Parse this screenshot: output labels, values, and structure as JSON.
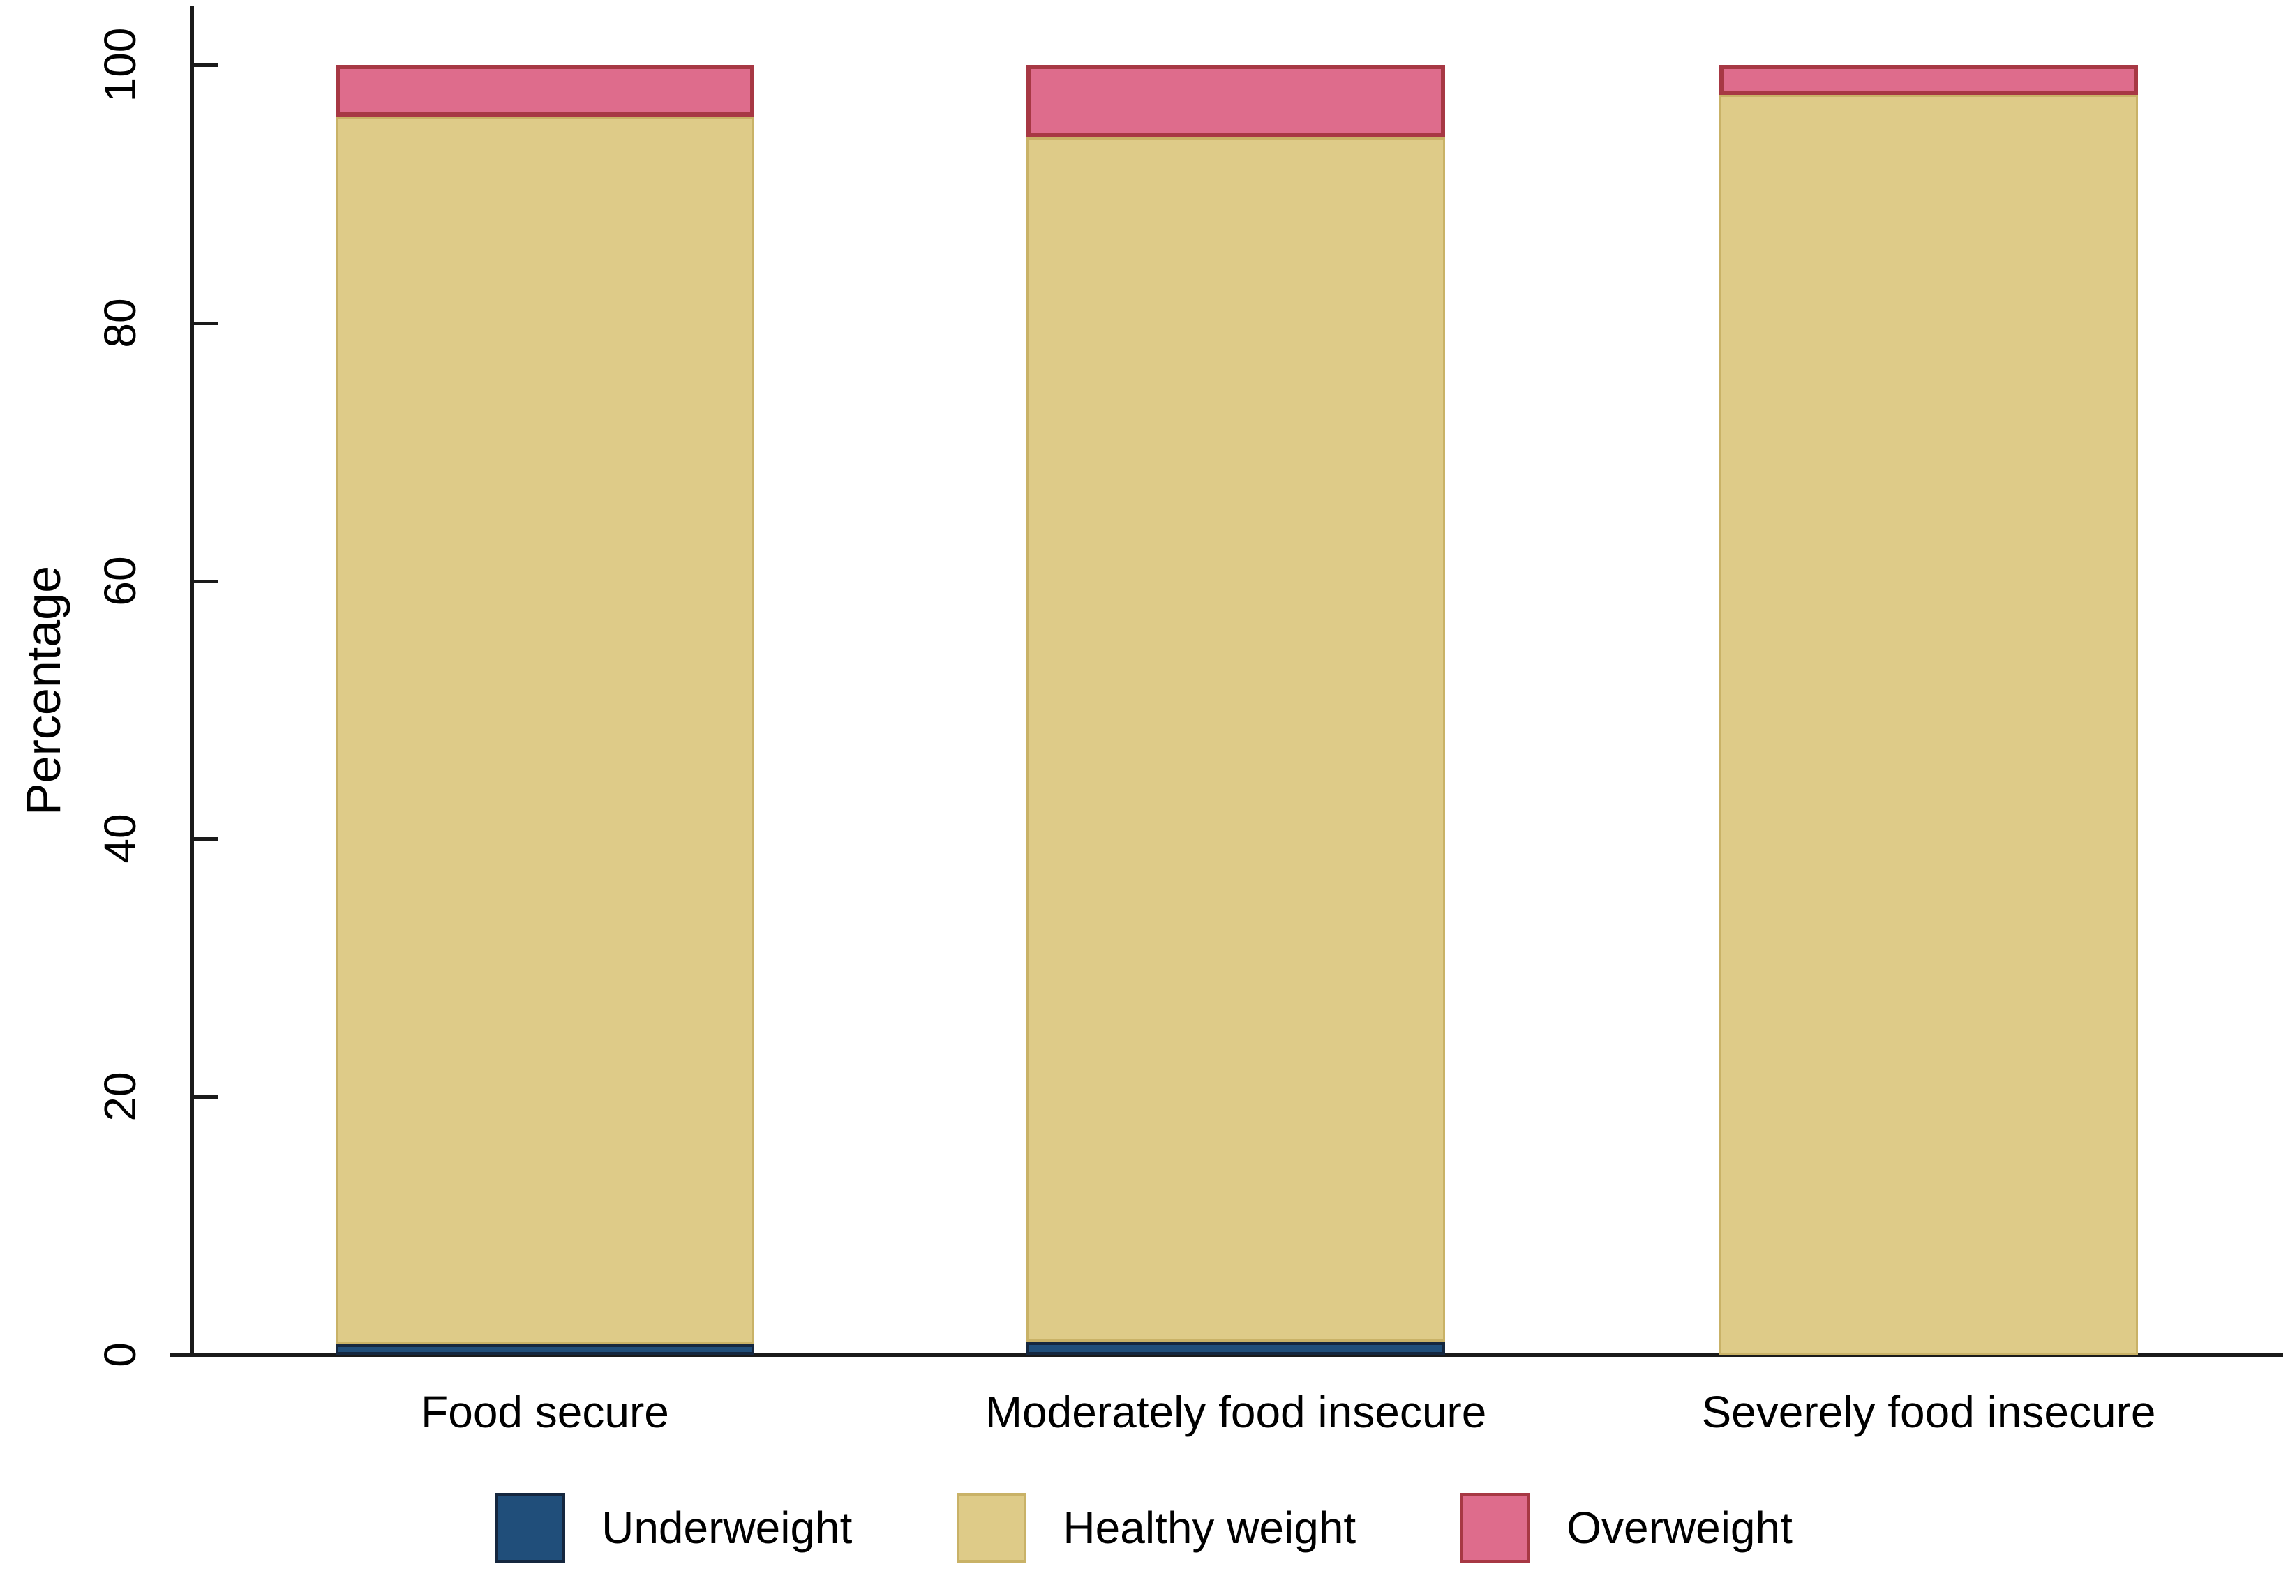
{
  "chart_data": {
    "type": "bar",
    "stacked": true,
    "orientation": "vertical",
    "title": "",
    "xlabel": "",
    "ylabel": "Percentage",
    "ylim": [
      0,
      100
    ],
    "yticks": [
      0,
      20,
      40,
      60,
      80,
      100
    ],
    "grid": false,
    "legend_position": "bottom",
    "categories": [
      "Food secure",
      "Moderately food insecure",
      "Severely food insecure"
    ],
    "series": [
      {
        "name": "Underweight",
        "values": [
          0.8,
          1.0,
          0.0
        ],
        "fill": "#204e7a",
        "border": "#15273f"
      },
      {
        "name": "Healthy weight",
        "values": [
          95.2,
          93.4,
          97.7
        ],
        "fill": "#decb88",
        "border": "#c9b267"
      },
      {
        "name": "Overweight",
        "values": [
          4.0,
          5.6,
          2.3
        ],
        "fill": "#de6c8c",
        "border": "#a73844"
      }
    ],
    "axis_color": "#1a1a1a",
    "text_color": "#000000"
  }
}
